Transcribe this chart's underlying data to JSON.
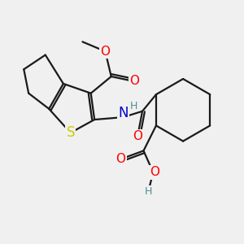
{
  "background_color": "#f0f0f0",
  "bond_color": "#1a1a1a",
  "bond_width": 1.6,
  "atom_colors": {
    "O": "#ff0000",
    "N": "#0000cd",
    "S": "#cccc00",
    "H_teal": "#4a9090",
    "C": "#1a1a1a"
  },
  "font_size_atom": 11,
  "figsize": [
    3.0,
    3.0
  ],
  "dpi": 100
}
